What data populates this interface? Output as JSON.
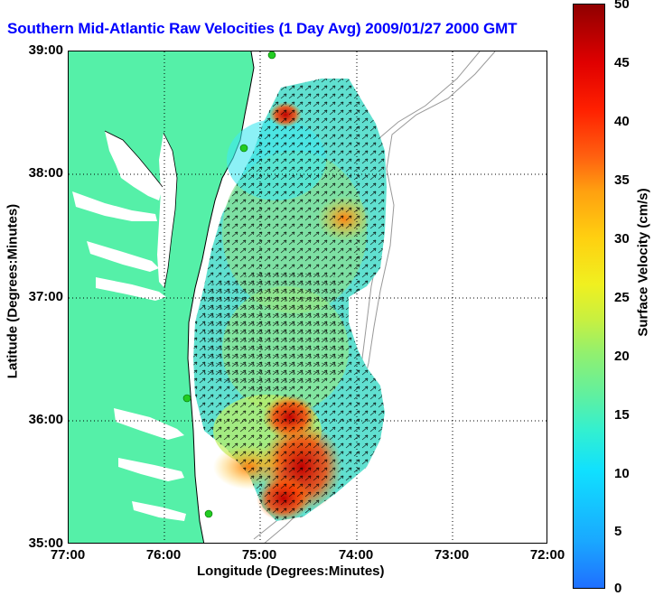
{
  "title": "Southern Mid-Atlantic Raw Velocities (1 Day Avg) 2009/01/27 2000 GMT",
  "x_axis": {
    "label": "Longitude (Degrees:Minutes)",
    "ticks": [
      "77:00",
      "76:00",
      "75:00",
      "74:00",
      "73:00",
      "72:00"
    ]
  },
  "y_axis": {
    "label": "Latitude (Degrees:Minutes)",
    "ticks": [
      "39:00",
      "38:00",
      "37:00",
      "36:00",
      "35:00"
    ]
  },
  "colorbar": {
    "label": "Surface Velocity (cm/s)",
    "ticks": [
      "50",
      "45",
      "40",
      "35",
      "30",
      "25",
      "20",
      "15",
      "10",
      "5",
      "0"
    ],
    "range": [
      0,
      50
    ],
    "colormap": "jet"
  },
  "colors": {
    "land": "#55f0a8",
    "water": "#ffffff",
    "title": "#0000ff",
    "station": "#22cc22"
  },
  "stations": [
    "station-1",
    "station-2",
    "station-3",
    "station-4"
  ]
}
